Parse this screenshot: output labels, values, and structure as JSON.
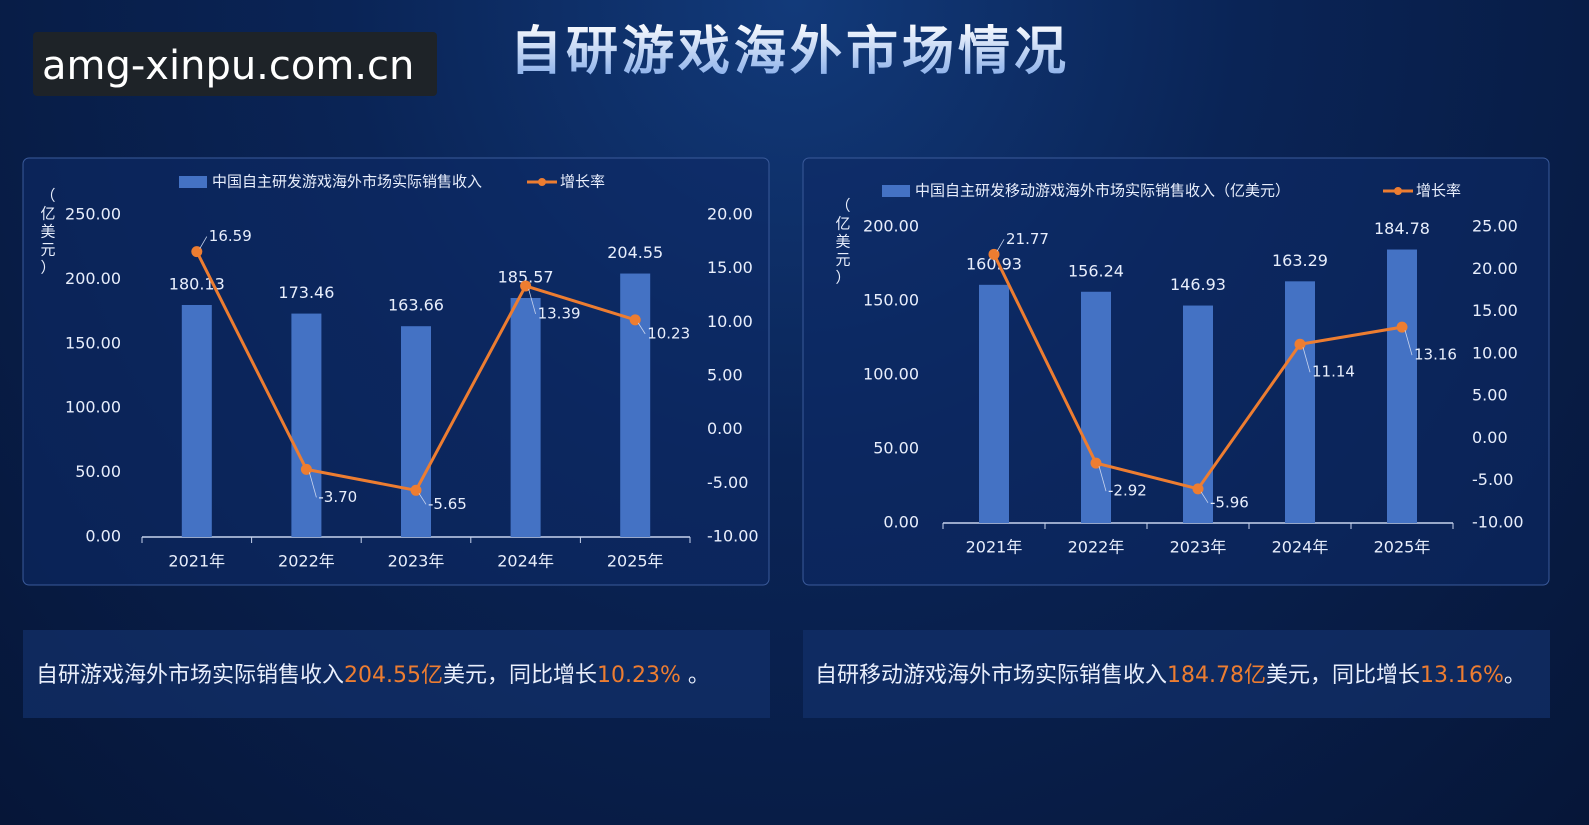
{
  "title": "自研游戏海外市场情况",
  "watermark": "amg-xinpu.com.cn",
  "summaries": [
    {
      "parts": [
        {
          "text": "自研游戏海外市场实际销售收入",
          "highlight": false
        },
        {
          "text": "204.55亿",
          "highlight": true
        },
        {
          "text": "美元，同比增长",
          "highlight": false
        },
        {
          "text": "10.23%",
          "highlight": true
        },
        {
          "text": " 。",
          "highlight": false
        }
      ]
    },
    {
      "parts": [
        {
          "text": "自研移动游戏海外市场实际销售收入",
          "highlight": false
        },
        {
          "text": "184.78亿",
          "highlight": true
        },
        {
          "text": "美元，同比增长",
          "highlight": false
        },
        {
          "text": "13.16%",
          "highlight": true
        },
        {
          "text": "。",
          "highlight": false
        }
      ]
    }
  ],
  "chart_data": [
    {
      "type": "bar-line",
      "y_label": "（亿美元）",
      "categories": [
        "2021年",
        "2022年",
        "2023年",
        "2024年",
        "2025年"
      ],
      "series": [
        {
          "name": "中国自主研发游戏海外市场实际销售收入",
          "color": "#4472c4",
          "type": "bar",
          "values": [
            180.13,
            173.46,
            163.66,
            185.57,
            204.55
          ]
        },
        {
          "name": "增长率",
          "color": "#ed7d31",
          "type": "line",
          "axis": "y2",
          "values": [
            16.59,
            -3.7,
            -5.65,
            13.39,
            10.23
          ],
          "value_labels": [
            "16.59",
            "-3.70",
            "-5.65",
            "13.39",
            "10.23"
          ]
        }
      ],
      "ylim": [
        0,
        250
      ],
      "yticks": [
        {
          "value": 0,
          "label": "0.00"
        },
        {
          "value": 50,
          "label": "50.00"
        },
        {
          "value": 100,
          "label": "100.00"
        },
        {
          "value": 150,
          "label": "150.00"
        },
        {
          "value": 200,
          "label": "200.00"
        },
        {
          "value": 250,
          "label": "250.00"
        }
      ],
      "y2lim": [
        -10,
        20
      ],
      "y2ticks": [
        {
          "value": -10,
          "label": "-10.00"
        },
        {
          "value": -5,
          "label": "-5.00"
        },
        {
          "value": 0,
          "label": "0.00"
        },
        {
          "value": 5,
          "label": "5.00"
        },
        {
          "value": 10,
          "label": "10.00"
        },
        {
          "value": 15,
          "label": "15.00"
        },
        {
          "value": 20,
          "label": "20.00"
        }
      ]
    },
    {
      "type": "bar-line",
      "y_label": "（亿美元）",
      "categories": [
        "2021年",
        "2022年",
        "2023年",
        "2024年",
        "2025年"
      ],
      "series": [
        {
          "name": "中国自主研发移动游戏海外市场实际销售收入（亿美元）",
          "color": "#4472c4",
          "type": "bar",
          "values": [
            160.93,
            156.24,
            146.93,
            163.29,
            184.78
          ]
        },
        {
          "name": "增长率",
          "color": "#ed7d31",
          "type": "line",
          "axis": "y2",
          "values": [
            21.77,
            -2.92,
            -5.96,
            11.14,
            13.16
          ]
        }
      ],
      "ylim": [
        0,
        200
      ],
      "yticks": [
        {
          "value": 0,
          "label": "0.00"
        },
        {
          "value": 50,
          "label": "50.00"
        },
        {
          "value": 100,
          "label": "100.00"
        },
        {
          "value": 150,
          "label": "150.00"
        },
        {
          "value": 200,
          "label": "200.00"
        }
      ],
      "y2lim": [
        -10,
        25
      ],
      "y2ticks": [
        {
          "value": -10,
          "label": "-10.00"
        },
        {
          "value": -5,
          "label": "-5.00"
        },
        {
          "value": 0,
          "label": "0.00"
        },
        {
          "value": 5,
          "label": "5.00"
        },
        {
          "value": 10,
          "label": "10.00"
        },
        {
          "value": 15,
          "label": "15.00"
        },
        {
          "value": 20,
          "label": "20.00"
        },
        {
          "value": 25,
          "label": "25.00"
        }
      ]
    }
  ]
}
